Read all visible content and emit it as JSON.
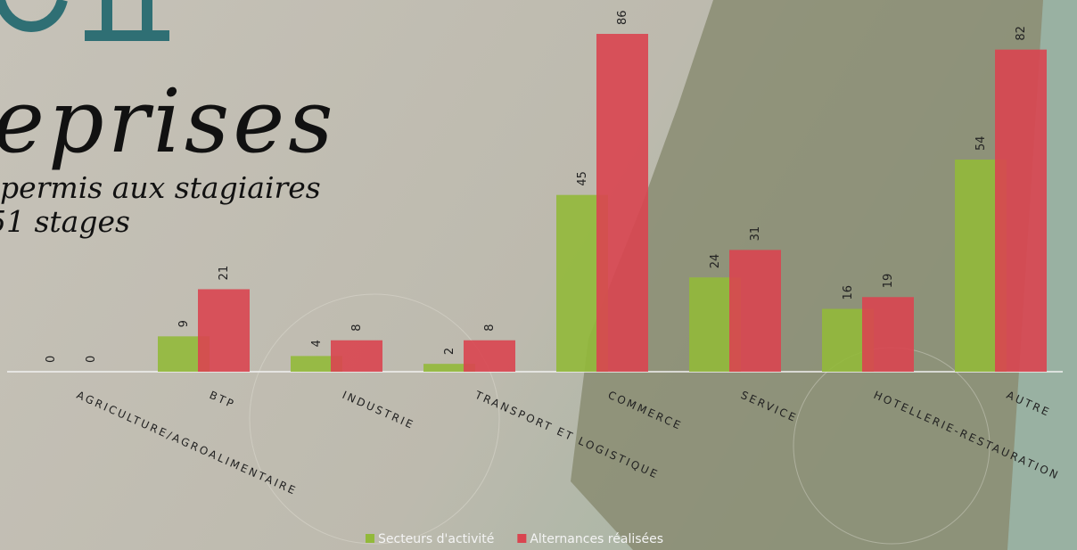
{
  "heading": {
    "title": "eprises",
    "line1": "permis aux stagiaires",
    "line2": "51 stages"
  },
  "chart_data": {
    "type": "bar",
    "categories": [
      "AGRICULTURE/AGROALIMENTAIRE",
      "BTP",
      "INDUSTRIE",
      "TRANSPORT ET LOGISTIQUE",
      "COMMERCE",
      "SERVICE",
      "HOTELLERIE-RESTAURATION",
      "AUTRE"
    ],
    "series": [
      {
        "name": "Secteurs d'activité",
        "color": "#92b93a",
        "values": [
          0,
          9,
          4,
          2,
          45,
          24,
          16,
          54
        ]
      },
      {
        "name": "Alternances réalisées",
        "color": "#d94550",
        "values": [
          0,
          21,
          8,
          8,
          86,
          31,
          19,
          82
        ]
      }
    ],
    "legend": "bottom"
  }
}
